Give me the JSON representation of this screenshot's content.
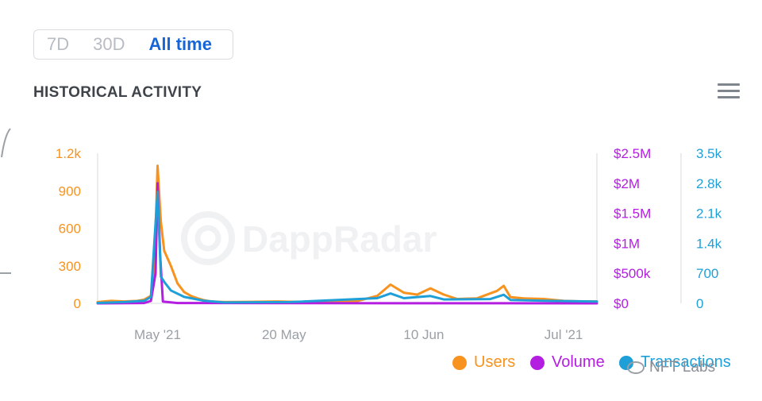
{
  "range_tabs": [
    {
      "label": "7D",
      "active": false
    },
    {
      "label": "30D",
      "active": false
    },
    {
      "label": "All time",
      "active": true
    }
  ],
  "section_title": "HISTORICAL ACTIVITY",
  "menu_icon": "hamburger-menu-icon",
  "watermark": {
    "text": "DappRadar",
    "icon": "dappradar-logo-icon"
  },
  "wechat_tag": {
    "text": "NFT Labs",
    "icon": "wechat-icon"
  },
  "colors": {
    "users": "#f7931e",
    "volume": "#b31ee0",
    "transactions": "#1f9fd8",
    "axis": "#d6d9dd"
  },
  "chart_data": {
    "type": "line",
    "x_ticks": [
      "May '21",
      "20 May",
      "10 Jun",
      "Jul '21"
    ],
    "x_tick_days": [
      0,
      19,
      40,
      61
    ],
    "x_range_days": [
      -9,
      66
    ],
    "y_left": {
      "ticks": [
        "1.2k",
        "900",
        "600",
        "300",
        "0"
      ],
      "range": [
        0,
        1200
      ]
    },
    "y_right1": {
      "ticks": [
        "$2.5M",
        "$2M",
        "$1.5M",
        "$1M",
        "$500k",
        "$0"
      ],
      "range": [
        0,
        2500000
      ]
    },
    "y_right2": {
      "ticks": [
        "3.5k",
        "2.8k",
        "2.1k",
        "1.4k",
        "700",
        "0"
      ],
      "range": [
        0,
        3500
      ]
    },
    "series": [
      {
        "name": "Users",
        "axis": "y_left",
        "points": [
          [
            -9,
            10
          ],
          [
            -7,
            20
          ],
          [
            -5,
            15
          ],
          [
            -3,
            20
          ],
          [
            -2,
            30
          ],
          [
            -1,
            60
          ],
          [
            -0.5,
            250
          ],
          [
            0,
            1100
          ],
          [
            0.5,
            650
          ],
          [
            1,
            420
          ],
          [
            2,
            300
          ],
          [
            3,
            160
          ],
          [
            4,
            90
          ],
          [
            5,
            60
          ],
          [
            6,
            40
          ],
          [
            7,
            25
          ],
          [
            8,
            15
          ],
          [
            10,
            10
          ],
          [
            14,
            12
          ],
          [
            18,
            15
          ],
          [
            22,
            10
          ],
          [
            26,
            15
          ],
          [
            30,
            18
          ],
          [
            33,
            60
          ],
          [
            35,
            150
          ],
          [
            37,
            85
          ],
          [
            39,
            70
          ],
          [
            41,
            120
          ],
          [
            43,
            70
          ],
          [
            45,
            35
          ],
          [
            48,
            40
          ],
          [
            51,
            100
          ],
          [
            52,
            140
          ],
          [
            53,
            50
          ],
          [
            55,
            40
          ],
          [
            58,
            35
          ],
          [
            61,
            20
          ],
          [
            64,
            15
          ],
          [
            66,
            15
          ]
        ]
      },
      {
        "name": "Volume",
        "axis": "y_right1",
        "points": [
          [
            -9,
            0
          ],
          [
            -2,
            5000
          ],
          [
            -1,
            40000
          ],
          [
            -0.3,
            500000
          ],
          [
            0,
            2000000
          ],
          [
            0.4,
            800000
          ],
          [
            0.8,
            30000
          ],
          [
            3,
            5000
          ],
          [
            66,
            0
          ]
        ]
      },
      {
        "name": "Transactions",
        "axis": "y_right2",
        "points": [
          [
            -9,
            10
          ],
          [
            -5,
            30
          ],
          [
            -2,
            60
          ],
          [
            -1,
            150
          ],
          [
            0,
            2600
          ],
          [
            0.5,
            620
          ],
          [
            1,
            500
          ],
          [
            2,
            300
          ],
          [
            4,
            150
          ],
          [
            7,
            60
          ],
          [
            10,
            20
          ],
          [
            20,
            30
          ],
          [
            33,
            120
          ],
          [
            35,
            230
          ],
          [
            37,
            120
          ],
          [
            41,
            170
          ],
          [
            43,
            90
          ],
          [
            50,
            100
          ],
          [
            52,
            200
          ],
          [
            53,
            80
          ],
          [
            58,
            60
          ],
          [
            66,
            40
          ]
        ]
      }
    ]
  }
}
